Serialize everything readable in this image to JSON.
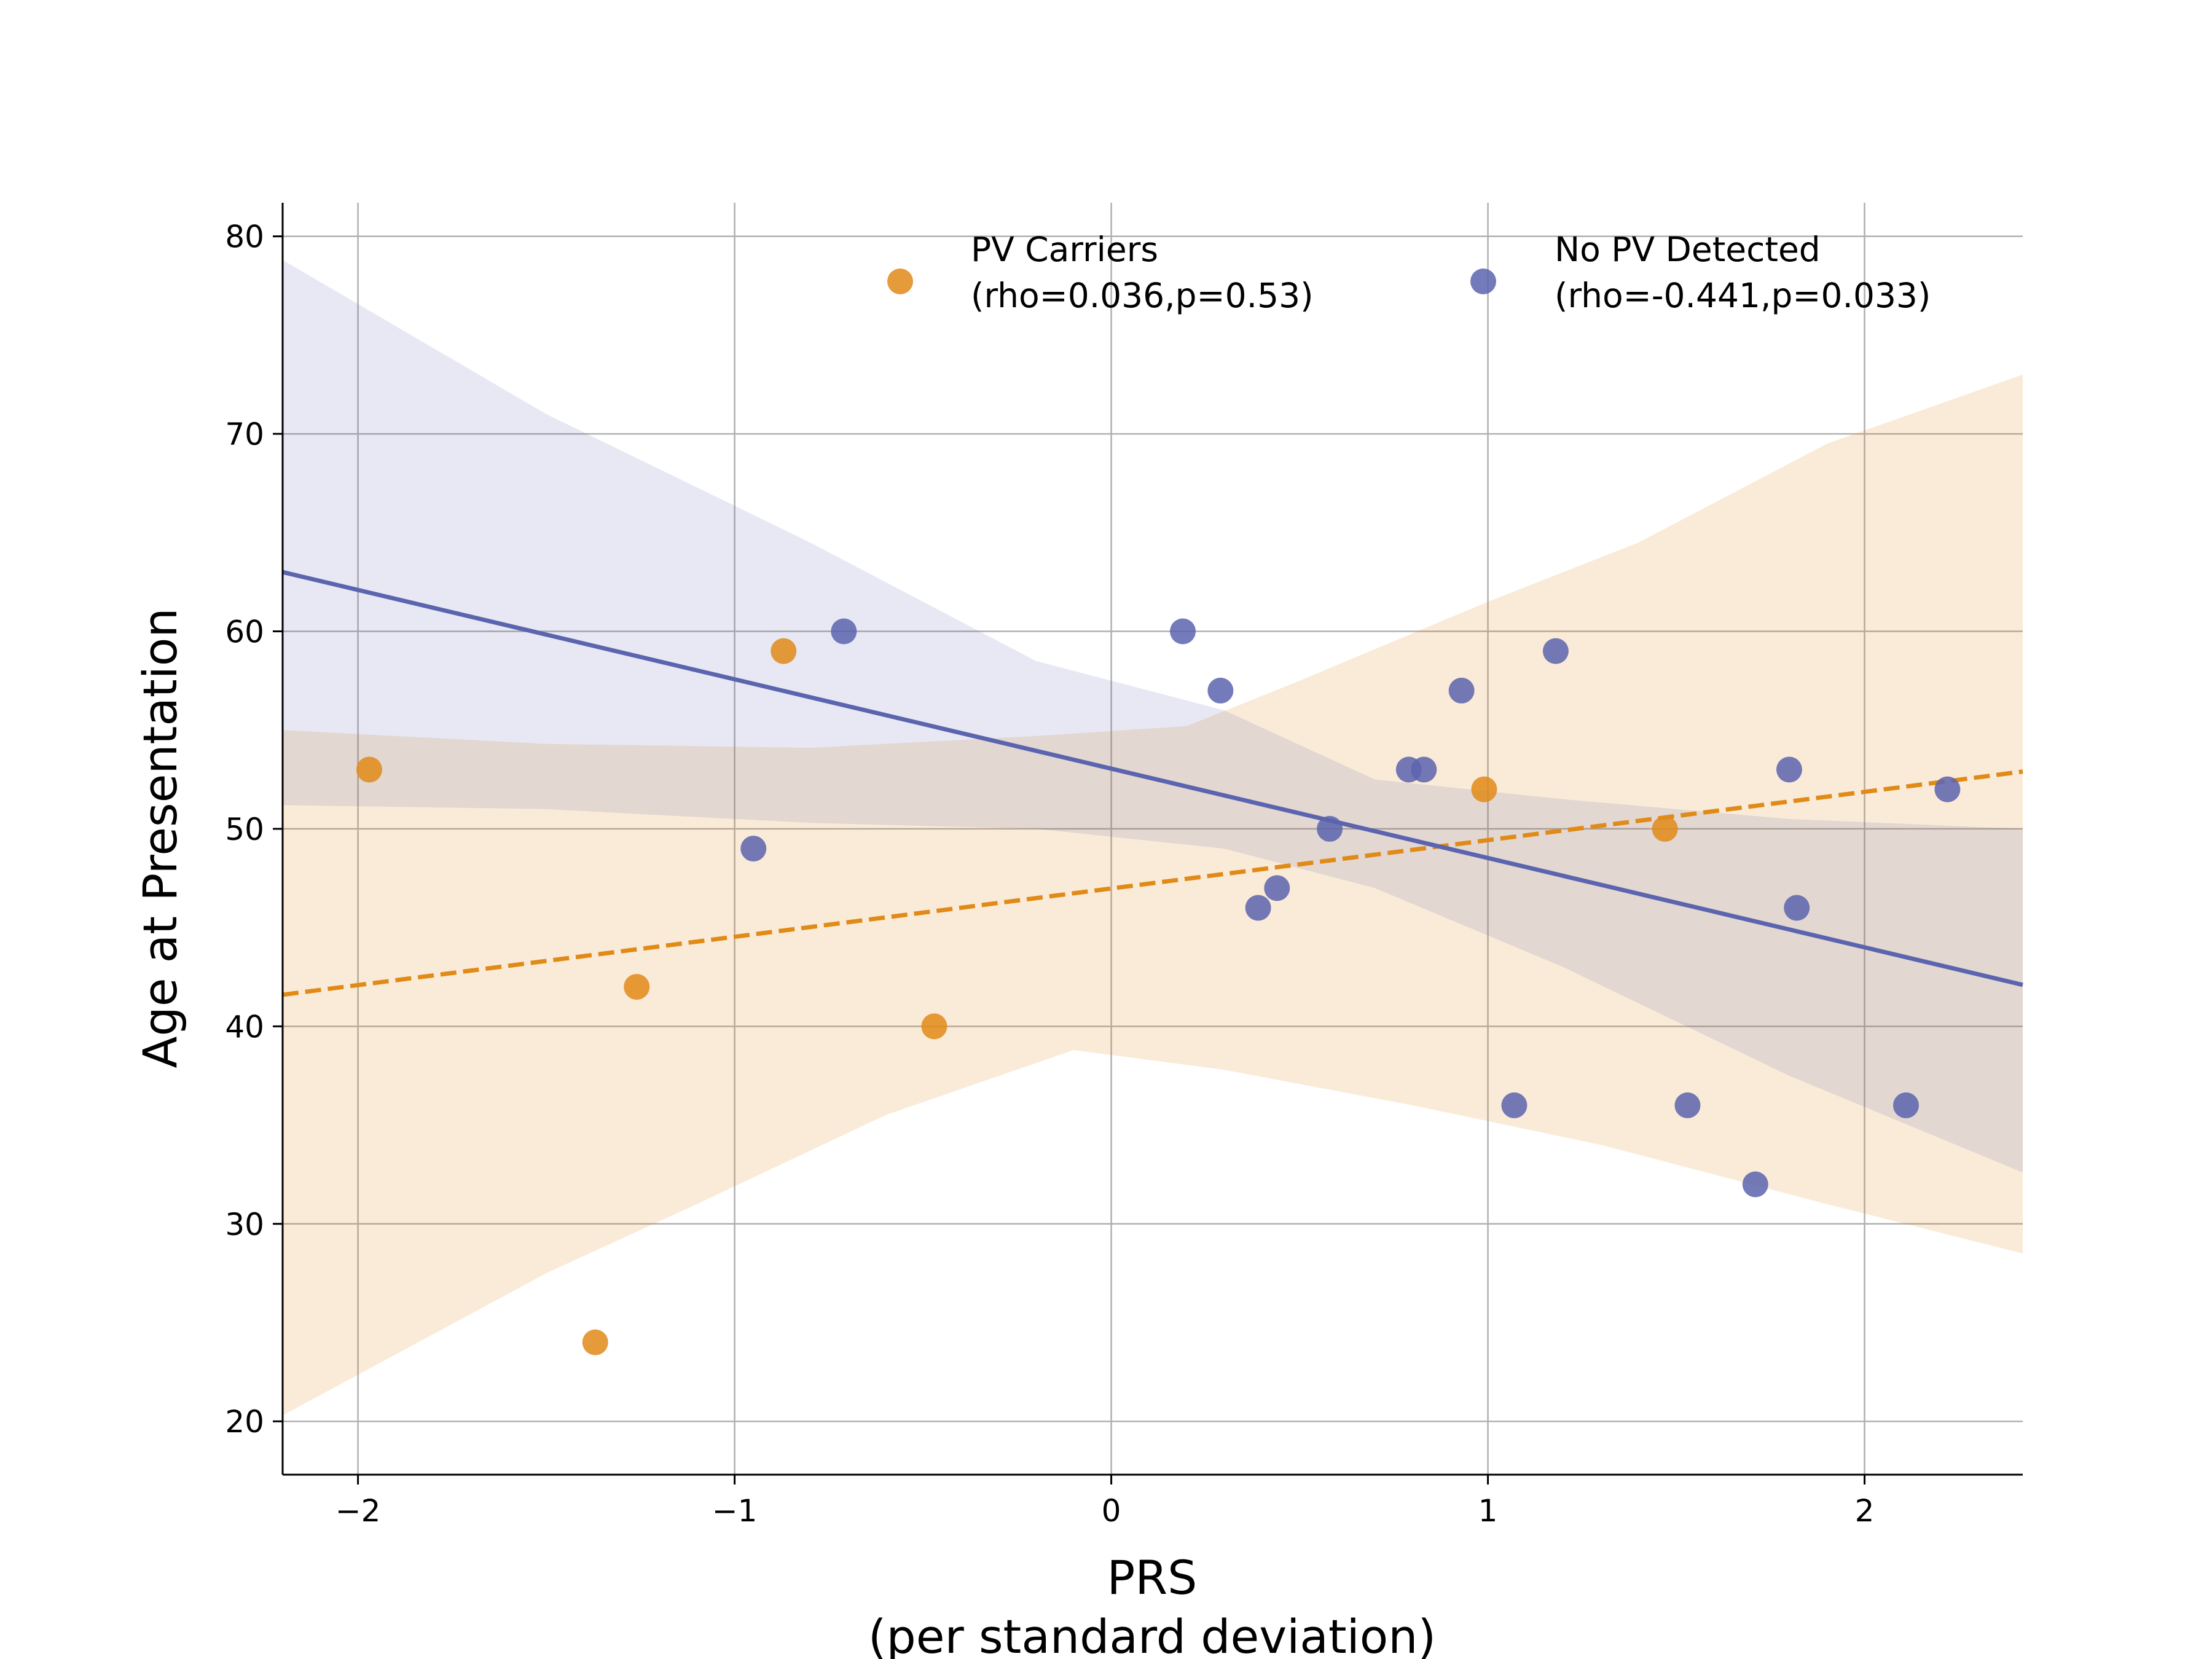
{
  "chart_data": {
    "type": "scatter",
    "xlabel": "PRS",
    "xlabel_sub": "(per standard deviation)",
    "ylabel": "Age at Presentation",
    "xlim": [
      -2.2,
      2.42
    ],
    "ylim": [
      17.3,
      81.7
    ],
    "xticks": [
      -2,
      -1,
      0,
      1,
      2
    ],
    "xtick_labels": [
      "−2",
      "−1",
      "0",
      "1",
      "2"
    ],
    "yticks": [
      20,
      30,
      40,
      50,
      60,
      70,
      80
    ],
    "ytick_labels": [
      "20",
      "30",
      "40",
      "50",
      "60",
      "70",
      "80"
    ],
    "grid": true,
    "legend_position": "top-right",
    "series": [
      {
        "name": "PV Carriers",
        "stat": "(rho=0.036,p=0.53)",
        "color": "#e08a17",
        "line_style": "dashed",
        "points": [
          {
            "x": -1.97,
            "y": 53
          },
          {
            "x": -1.37,
            "y": 24
          },
          {
            "x": -1.26,
            "y": 42
          },
          {
            "x": -0.87,
            "y": 59
          },
          {
            "x": -0.47,
            "y": 40
          },
          {
            "x": 0.99,
            "y": 52
          },
          {
            "x": 1.47,
            "y": 50
          }
        ],
        "fit": [
          {
            "x": -2.2,
            "y": 41.6
          },
          {
            "x": 2.42,
            "y": 52.9
          }
        ],
        "ci_upper": [
          {
            "x": -2.2,
            "y": 55.0
          },
          {
            "x": -1.5,
            "y": 54.3
          },
          {
            "x": -0.8,
            "y": 54.1
          },
          {
            "x": -0.2,
            "y": 54.7
          },
          {
            "x": 0.2,
            "y": 55.2
          },
          {
            "x": 0.5,
            "y": 57.5
          },
          {
            "x": 1.0,
            "y": 61.5
          },
          {
            "x": 1.4,
            "y": 64.5
          },
          {
            "x": 1.9,
            "y": 69.5
          },
          {
            "x": 2.42,
            "y": 73.0
          }
        ],
        "ci_lower": [
          {
            "x": -2.2,
            "y": 20.3
          },
          {
            "x": -1.5,
            "y": 27.5
          },
          {
            "x": -1.1,
            "y": 31.0
          },
          {
            "x": -0.6,
            "y": 35.5
          },
          {
            "x": -0.1,
            "y": 38.8
          },
          {
            "x": 0.3,
            "y": 37.8
          },
          {
            "x": 0.8,
            "y": 36.0
          },
          {
            "x": 1.3,
            "y": 34.0
          },
          {
            "x": 1.9,
            "y": 31.0
          },
          {
            "x": 2.42,
            "y": 28.5
          }
        ]
      },
      {
        "name": "No PV Detected",
        "stat": "(rho=-0.441,p=0.033)",
        "color": "#5b64ae",
        "line_style": "solid",
        "points": [
          {
            "x": -0.95,
            "y": 49
          },
          {
            "x": -0.71,
            "y": 60
          },
          {
            "x": 0.19,
            "y": 60
          },
          {
            "x": 0.29,
            "y": 57
          },
          {
            "x": 0.39,
            "y": 46
          },
          {
            "x": 0.44,
            "y": 47
          },
          {
            "x": 0.58,
            "y": 50
          },
          {
            "x": 0.79,
            "y": 53
          },
          {
            "x": 0.83,
            "y": 53
          },
          {
            "x": 0.93,
            "y": 57
          },
          {
            "x": 1.07,
            "y": 36
          },
          {
            "x": 1.18,
            "y": 59
          },
          {
            "x": 1.53,
            "y": 36
          },
          {
            "x": 1.71,
            "y": 32
          },
          {
            "x": 1.8,
            "y": 53
          },
          {
            "x": 1.82,
            "y": 46
          },
          {
            "x": 2.11,
            "y": 36
          },
          {
            "x": 2.22,
            "y": 52
          }
        ],
        "fit": [
          {
            "x": -2.2,
            "y": 63.0
          },
          {
            "x": 2.42,
            "y": 42.1
          }
        ],
        "ci_upper": [
          {
            "x": -2.2,
            "y": 78.8
          },
          {
            "x": -1.5,
            "y": 71.0
          },
          {
            "x": -0.8,
            "y": 64.5
          },
          {
            "x": -0.2,
            "y": 58.5
          },
          {
            "x": 0.3,
            "y": 56.0
          },
          {
            "x": 0.7,
            "y": 52.5
          },
          {
            "x": 1.2,
            "y": 51.5
          },
          {
            "x": 1.8,
            "y": 50.5
          },
          {
            "x": 2.42,
            "y": 50.0
          }
        ],
        "ci_lower": [
          {
            "x": -2.2,
            "y": 51.2
          },
          {
            "x": -1.5,
            "y": 51.0
          },
          {
            "x": -0.8,
            "y": 50.3
          },
          {
            "x": -0.2,
            "y": 50.0
          },
          {
            "x": 0.3,
            "y": 49.0
          },
          {
            "x": 0.7,
            "y": 47.0
          },
          {
            "x": 1.2,
            "y": 43.0
          },
          {
            "x": 1.8,
            "y": 37.5
          },
          {
            "x": 2.42,
            "y": 32.6
          }
        ]
      }
    ]
  }
}
